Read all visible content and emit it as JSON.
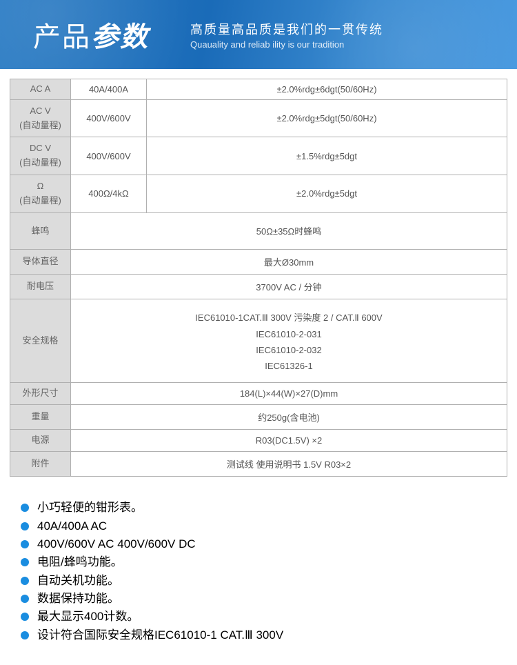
{
  "header": {
    "title_part1": "产品",
    "title_part2": "参数",
    "subtitle_cn": "高质量高品质是我们的一贯传统",
    "subtitle_en": "Quauality and reliab ility is our tradition"
  },
  "table": {
    "rows": [
      {
        "label": "AC A",
        "sub": "",
        "range": "40A/400A",
        "accuracy": "±2.0%rdg±6dgt(50/60Hz)"
      },
      {
        "label": "AC V",
        "sub": "(自动量程)",
        "range": "400V/600V",
        "accuracy": "±2.0%rdg±5dgt(50/60Hz)"
      },
      {
        "label": "DC V",
        "sub": "(自动量程)",
        "range": "400V/600V",
        "accuracy": "±1.5%rdg±5dgt"
      },
      {
        "label": "Ω",
        "sub": "(自动量程)",
        "range": "400Ω/4kΩ",
        "accuracy": "±2.0%rdg±5dgt"
      }
    ],
    "single_rows": [
      {
        "label": "蜂鸣",
        "value": "50Ω±35Ω时蜂鸣",
        "tall": true
      },
      {
        "label": "导体直径",
        "value": "最大Ø30mm"
      },
      {
        "label": "耐电压",
        "value": "3700V AC / 分钟"
      }
    ],
    "safety": {
      "label": "安全规格",
      "lines": [
        "IEC61010-1CAT.Ⅲ 300V 污染度 2 / CAT.Ⅱ 600V",
        "IEC61010-2-031",
        "IEC61010-2-032",
        "IEC61326-1"
      ]
    },
    "tail_rows": [
      {
        "label": "外形尺寸",
        "value": "184(L)×44(W)×27(D)mm"
      },
      {
        "label": "重量",
        "value": "约250g(含电池)"
      },
      {
        "label": "电源",
        "value": "R03(DC1.5V) ×2"
      },
      {
        "label": "附件",
        "value": "测试线 使用说明书 1.5V R03×2"
      }
    ]
  },
  "bullets": [
    "小巧轻便的钳形表。",
    "40A/400A AC",
    "400V/600V AC  400V/600V DC",
    "电阻/蜂鸣功能。",
    "自动关机功能。",
    "数据保持功能。",
    "最大显示400计数。",
    "设计符合国际安全规格IEC61010-1 CAT.Ⅲ 300V"
  ],
  "colors": {
    "header_gradient_from": "#2b7cc4",
    "header_gradient_to": "#4a9ae0",
    "table_border": "#b0b0b0",
    "table_header_bg": "#dcdcdc",
    "text": "#555555",
    "bullet_color": "#1a8de0"
  }
}
